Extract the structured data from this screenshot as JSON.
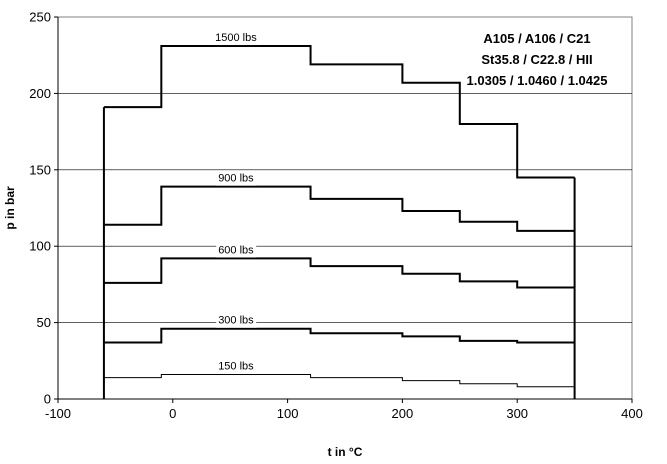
{
  "chart_data": {
    "type": "line",
    "title": "",
    "xlabel": "t in °C",
    "ylabel": "p in bar",
    "xlim": [
      -100,
      400
    ],
    "ylim": [
      0,
      250
    ],
    "xticks": [
      -100,
      0,
      100,
      200,
      300,
      400
    ],
    "yticks": [
      0,
      50,
      100,
      150,
      200,
      250
    ],
    "grid": "horizontal",
    "step": true,
    "annotations": [
      "A105 / A106 / C21",
      "St35.8 / C22.8 / HII",
      "1.0305 / 1.0460 / 1.0425"
    ],
    "series": [
      {
        "name": "1500 lbs",
        "x": [
          -60,
          -10,
          120,
          200,
          250,
          300,
          350
        ],
        "y": [
          191,
          231,
          219,
          207,
          180,
          145,
          145
        ]
      },
      {
        "name": "900 lbs",
        "x": [
          -60,
          -10,
          120,
          200,
          250,
          300,
          350
        ],
        "y": [
          114,
          139,
          131,
          123,
          116,
          110,
          110
        ]
      },
      {
        "name": "600 lbs",
        "x": [
          -60,
          -10,
          120,
          200,
          250,
          300,
          350
        ],
        "y": [
          76,
          92,
          87,
          82,
          77,
          73,
          73
        ]
      },
      {
        "name": "300 lbs",
        "x": [
          -60,
          -10,
          120,
          200,
          250,
          300,
          350
        ],
        "y": [
          37,
          46,
          43,
          41,
          38,
          37,
          37
        ]
      },
      {
        "name": "150 lbs",
        "x": [
          -60,
          -10,
          120,
          200,
          250,
          300,
          350
        ],
        "y": [
          14,
          16,
          14,
          12,
          10,
          8,
          8
        ]
      }
    ],
    "boundary": {
      "x": [
        -60,
        350
      ]
    }
  }
}
